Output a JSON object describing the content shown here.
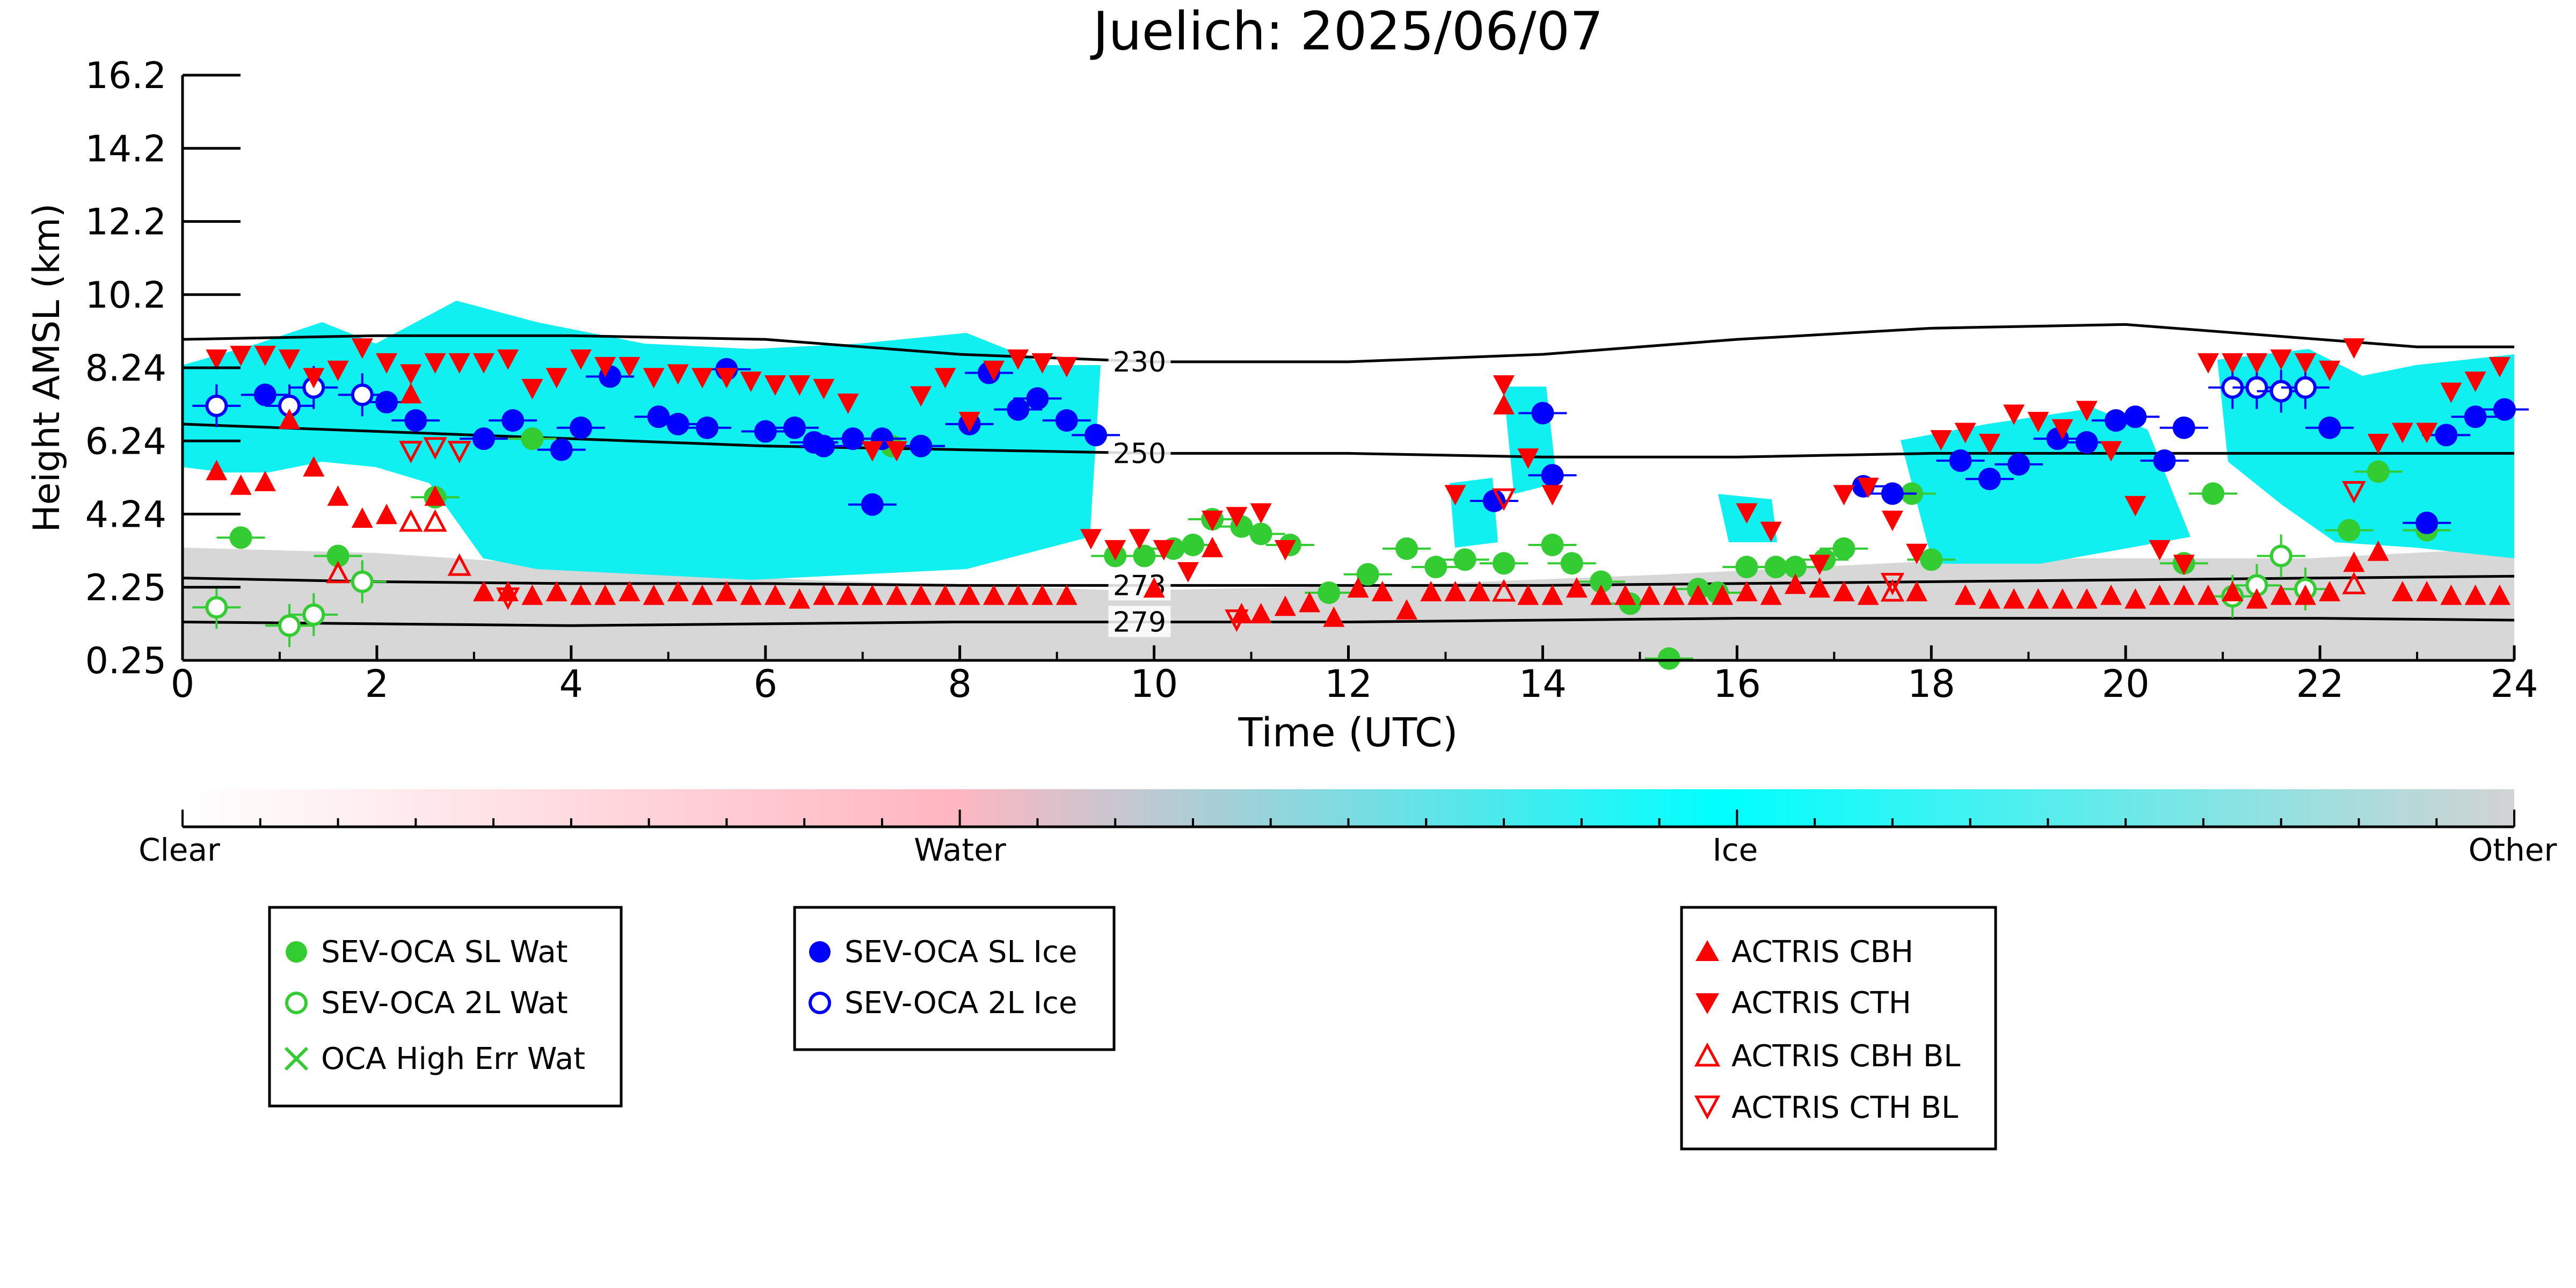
{
  "chart_data": {
    "type": "scatter",
    "title": "Juelich: 2025/06/07",
    "xlabel": "Time (UTC)",
    "ylabel": "Height AMSL (km)",
    "xlim": [
      0,
      24
    ],
    "ylim": [
      0.25,
      16.2
    ],
    "xticks": [
      "0",
      "2",
      "4",
      "6",
      "8",
      "10",
      "12",
      "14",
      "16",
      "18",
      "20",
      "22",
      "24"
    ],
    "yticks": [
      "0.25",
      "2.25",
      "4.24",
      "6.24",
      "8.24",
      "10.2",
      "12.2",
      "14.2",
      "16.2"
    ],
    "ytick_values": [
      0.25,
      2.25,
      4.24,
      6.24,
      8.24,
      10.2,
      12.2,
      14.2,
      16.2
    ],
    "grid": false,
    "colorbar": {
      "labels": [
        "Clear",
        "Water",
        "Ice",
        "Other"
      ],
      "colors": [
        "#ffffff",
        "#ffb6c1",
        "#00ffff",
        "#d3d3d3"
      ]
    },
    "legends": [
      {
        "position": "lower-left",
        "entries": [
          {
            "label": "SEV-OCA SL Wat",
            "marker": "filled-circle",
            "color": "#33cc33"
          },
          {
            "label": "SEV-OCA 2L Wat",
            "marker": "open-circle",
            "color": "#33cc33"
          },
          {
            "label": "OCA High Err Wat",
            "marker": "x",
            "color": "#33cc33"
          }
        ]
      },
      {
        "position": "lower-center-left",
        "entries": [
          {
            "label": "SEV-OCA SL Ice",
            "marker": "filled-circle",
            "color": "#0000ff"
          },
          {
            "label": "SEV-OCA 2L Ice",
            "marker": "open-circle",
            "color": "#0000ff"
          }
        ]
      },
      {
        "position": "lower-right",
        "entries": [
          {
            "label": "ACTRIS CBH",
            "marker": "triangle-up",
            "color": "#ff0000"
          },
          {
            "label": "ACTRIS CTH",
            "marker": "triangle-down",
            "color": "#ff0000"
          },
          {
            "label": "ACTRIS CBH BL",
            "marker": "open-triangle-up",
            "color": "#ff0000"
          },
          {
            "label": "ACTRIS CTH BL",
            "marker": "open-triangle-down",
            "color": "#ff0000"
          }
        ]
      }
    ],
    "isotherms": [
      {
        "label": "230",
        "x": [
          0,
          2,
          4,
          6,
          8,
          10,
          12,
          14,
          16,
          18,
          20,
          22,
          23,
          24
        ],
        "y": [
          9.0,
          9.1,
          9.1,
          9.0,
          8.6,
          8.4,
          8.4,
          8.6,
          9.0,
          9.3,
          9.4,
          9.0,
          8.8,
          8.8
        ]
      },
      {
        "label": "250",
        "x": [
          0,
          2,
          4,
          6,
          8,
          10,
          12,
          14,
          16,
          18,
          20,
          22,
          24
        ],
        "y": [
          6.7,
          6.5,
          6.3,
          6.1,
          6.0,
          5.9,
          5.9,
          5.8,
          5.8,
          5.9,
          5.9,
          5.9,
          5.9
        ]
      },
      {
        "label": "273",
        "x": [
          0,
          2,
          4,
          6,
          8,
          10,
          12,
          14,
          16,
          18,
          20,
          22,
          24
        ],
        "y": [
          2.5,
          2.4,
          2.35,
          2.35,
          2.3,
          2.3,
          2.3,
          2.3,
          2.35,
          2.4,
          2.45,
          2.5,
          2.55
        ]
      },
      {
        "label": "279",
        "x": [
          0,
          2,
          4,
          6,
          8,
          10,
          12,
          14,
          16,
          18,
          20,
          22,
          24
        ],
        "y": [
          1.3,
          1.25,
          1.2,
          1.25,
          1.3,
          1.3,
          1.3,
          1.35,
          1.4,
          1.4,
          1.4,
          1.4,
          1.35
        ]
      }
    ],
    "series": [
      {
        "name": "SEV-OCA SL Wat",
        "x": [
          0.6,
          1.6,
          2.6,
          3.6,
          7.3,
          7.6,
          9.6,
          9.9,
          10.2,
          10.4,
          10.6,
          10.9,
          11.1,
          11.4,
          11.8,
          12.2,
          12.6,
          12.9,
          13.2,
          13.6,
          14.1,
          14.3,
          14.6,
          14.9,
          15.3,
          15.6,
          15.8,
          16.1,
          16.4,
          16.6,
          16.9,
          17.1,
          17.8,
          18.0,
          20.6,
          20.9,
          22.3,
          22.6,
          23.1
        ],
        "y": [
          3.6,
          3.1,
          4.7,
          6.3,
          6.1,
          6.1,
          3.1,
          3.1,
          3.3,
          3.4,
          4.1,
          3.9,
          3.7,
          3.4,
          2.1,
          2.6,
          3.3,
          2.8,
          3.0,
          2.9,
          3.4,
          2.9,
          2.4,
          1.8,
          0.3,
          2.2,
          2.1,
          2.8,
          2.8,
          2.8,
          3.0,
          3.3,
          4.8,
          3.0,
          2.9,
          4.8,
          3.8,
          5.4,
          3.8
        ]
      },
      {
        "name": "SEV-OCA 2L Wat",
        "x": [
          0.35,
          1.1,
          1.35,
          1.85,
          21.1,
          21.35,
          21.6,
          21.85
        ],
        "y": [
          1.7,
          1.2,
          1.5,
          2.4,
          2.0,
          2.3,
          3.1,
          2.2
        ]
      },
      {
        "name": "SEV-OCA SL Ice",
        "x": [
          0.85,
          2.1,
          2.4,
          3.1,
          3.4,
          3.9,
          4.1,
          4.4,
          4.9,
          5.1,
          5.4,
          5.6,
          6.0,
          6.3,
          6.5,
          6.6,
          6.9,
          7.1,
          7.2,
          7.6,
          8.1,
          8.3,
          8.6,
          8.8,
          9.1,
          9.4,
          13.5,
          14.0,
          14.1,
          17.3,
          17.6,
          18.3,
          18.6,
          18.9,
          19.3,
          19.6,
          19.9,
          20.1,
          20.4,
          20.6,
          22.1,
          23.1,
          23.3,
          23.6,
          23.9
        ],
        "y": [
          7.5,
          7.3,
          6.8,
          6.3,
          6.8,
          6.0,
          6.6,
          8.0,
          6.9,
          6.7,
          6.6,
          8.2,
          6.5,
          6.6,
          6.2,
          6.1,
          6.3,
          4.5,
          6.3,
          6.1,
          6.7,
          8.1,
          7.1,
          7.4,
          6.8,
          6.4,
          4.6,
          7.0,
          5.3,
          5.0,
          4.8,
          5.7,
          5.2,
          5.6,
          6.3,
          6.2,
          6.8,
          6.9,
          5.7,
          6.6,
          6.6,
          4.0,
          6.4,
          6.9,
          7.1
        ]
      },
      {
        "name": "SEV-OCA 2L Ice",
        "x": [
          0.35,
          1.1,
          1.35,
          1.85,
          21.1,
          21.35,
          21.6,
          21.85
        ],
        "y": [
          7.2,
          7.2,
          7.7,
          7.5,
          7.7,
          7.7,
          7.6,
          7.7
        ]
      },
      {
        "name": "ACTRIS CBH",
        "x": [
          0.35,
          0.6,
          0.85,
          1.1,
          1.35,
          1.6,
          1.85,
          2.1,
          2.35,
          2.6,
          3.1,
          3.35,
          3.6,
          3.85,
          4.1,
          4.35,
          4.6,
          4.85,
          5.1,
          5.35,
          5.6,
          5.85,
          6.1,
          6.35,
          6.6,
          6.85,
          7.1,
          7.35,
          7.6,
          7.85,
          8.1,
          8.35,
          8.6,
          8.85,
          9.1,
          10.0,
          10.6,
          10.9,
          11.1,
          11.35,
          11.6,
          11.85,
          12.1,
          12.35,
          12.6,
          12.85,
          13.1,
          13.35,
          13.6,
          13.85,
          14.1,
          14.35,
          14.6,
          14.85,
          15.1,
          15.35,
          15.6,
          15.85,
          16.1,
          16.35,
          16.6,
          16.85,
          17.1,
          17.35,
          17.85,
          18.35,
          18.6,
          18.85,
          19.1,
          19.35,
          19.6,
          19.85,
          20.1,
          20.35,
          20.6,
          20.85,
          21.1,
          21.35,
          21.6,
          21.85,
          22.1,
          22.35,
          22.6,
          22.85,
          23.1,
          23.35,
          23.6,
          23.85
        ],
        "y": [
          5.4,
          5.0,
          5.1,
          6.8,
          5.5,
          4.7,
          4.1,
          4.2,
          7.5,
          4.7,
          2.1,
          2.1,
          2.0,
          2.1,
          2.0,
          2.0,
          2.1,
          2.0,
          2.1,
          2.0,
          2.1,
          2.0,
          2.0,
          1.9,
          2.0,
          2.0,
          2.0,
          2.0,
          2.0,
          2.0,
          2.0,
          2.0,
          2.0,
          2.0,
          2.0,
          2.2,
          3.3,
          1.5,
          1.5,
          1.7,
          1.8,
          1.4,
          2.2,
          2.1,
          1.6,
          2.1,
          2.1,
          2.1,
          7.2,
          2.0,
          2.0,
          2.2,
          2.0,
          2.0,
          2.0,
          2.0,
          2.0,
          2.0,
          2.1,
          2.0,
          2.3,
          2.2,
          2.1,
          2.0,
          2.1,
          2.0,
          1.9,
          1.9,
          1.9,
          1.9,
          1.9,
          2.0,
          1.9,
          2.0,
          2.0,
          2.0,
          2.1,
          1.9,
          2.0,
          2.0,
          2.1,
          2.9,
          3.2,
          2.1,
          2.1,
          2.0,
          2.0,
          2.0
        ]
      },
      {
        "name": "ACTRIS CTH",
        "x": [
          0.35,
          0.6,
          0.85,
          1.1,
          1.35,
          1.6,
          1.85,
          2.1,
          2.35,
          2.6,
          2.85,
          3.1,
          3.35,
          3.6,
          3.85,
          4.1,
          4.35,
          4.6,
          4.85,
          5.1,
          5.35,
          5.6,
          5.85,
          6.1,
          6.35,
          6.6,
          6.85,
          7.1,
          7.35,
          7.6,
          7.85,
          8.1,
          8.35,
          8.6,
          8.85,
          9.1,
          9.35,
          9.6,
          9.85,
          10.1,
          10.35,
          10.6,
          10.85,
          11.1,
          11.35,
          13.1,
          13.6,
          13.85,
          14.1,
          16.1,
          16.35,
          16.85,
          17.1,
          17.35,
          17.6,
          17.85,
          18.1,
          18.35,
          18.6,
          18.85,
          19.1,
          19.35,
          19.6,
          19.85,
          20.1,
          20.35,
          20.6,
          20.85,
          21.1,
          21.35,
          21.6,
          21.85,
          22.1,
          22.35,
          22.6,
          22.85,
          23.1,
          23.35,
          23.6,
          23.85
        ],
        "y": [
          8.5,
          8.6,
          8.6,
          8.5,
          8.0,
          8.2,
          8.8,
          8.4,
          8.1,
          8.4,
          8.4,
          8.4,
          8.5,
          7.7,
          8.0,
          8.5,
          8.3,
          8.3,
          8.0,
          8.1,
          8.0,
          8.0,
          7.9,
          7.8,
          7.8,
          7.7,
          7.3,
          6.0,
          6.0,
          7.5,
          8.0,
          6.8,
          8.2,
          8.5,
          8.4,
          8.3,
          3.6,
          3.3,
          3.6,
          3.3,
          2.7,
          4.1,
          4.2,
          4.3,
          3.3,
          4.8,
          7.8,
          5.8,
          4.8,
          4.3,
          3.8,
          2.9,
          4.8,
          5.0,
          4.1,
          3.2,
          6.3,
          6.5,
          6.2,
          7.0,
          6.8,
          6.6,
          7.1,
          6.0,
          4.5,
          3.3,
          2.9,
          8.4,
          8.4,
          8.4,
          8.5,
          8.4,
          8.2,
          8.8,
          6.2,
          6.5,
          6.5,
          7.6,
          7.9,
          8.3
        ]
      },
      {
        "name": "ACTRIS CBH BL",
        "x": [
          1.6,
          2.35,
          2.6,
          2.85,
          13.6,
          17.6,
          22.35
        ],
        "y": [
          2.6,
          4.0,
          4.0,
          2.8,
          2.1,
          2.1,
          2.3
        ]
      },
      {
        "name": "ACTRIS CTH BL",
        "x": [
          2.35,
          2.6,
          2.85,
          3.35,
          10.85,
          13.6,
          17.6,
          22.35
        ],
        "y": [
          6.0,
          6.1,
          6.0,
          2.0,
          1.4,
          4.7,
          2.4,
          4.9
        ]
      }
    ]
  }
}
